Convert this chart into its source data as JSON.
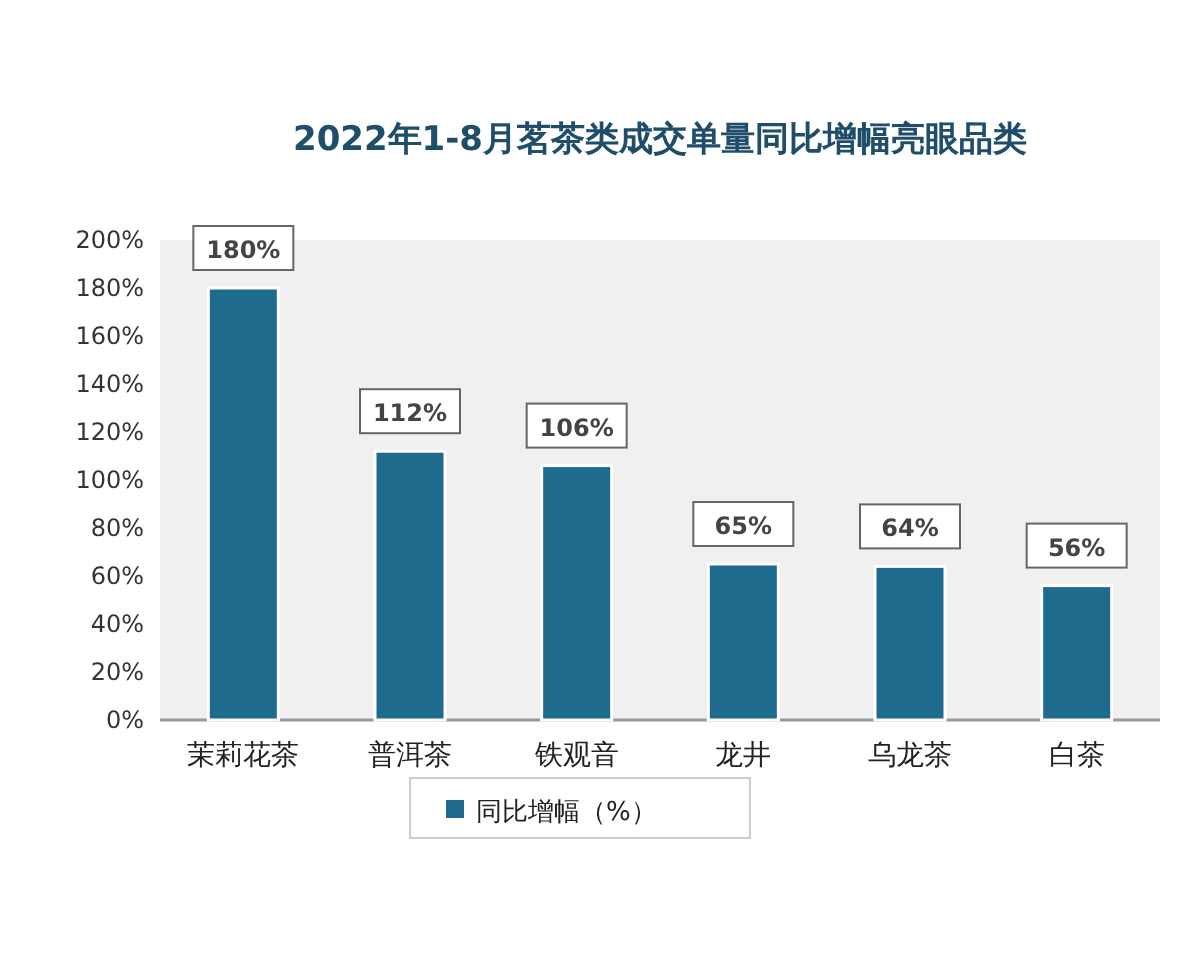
{
  "chart_data": {
    "type": "bar",
    "title": "2022年1-8月茗茶类成交单量同比增幅亮眼品类",
    "categories": [
      "茉莉花茶",
      "普洱茶",
      "铁观音",
      "龙井",
      "乌龙茶",
      "白茶"
    ],
    "series": [
      {
        "name": "同比增幅（%）",
        "color": "#1f6b8e",
        "values": [
          180,
          112,
          106,
          65,
          64,
          56
        ],
        "value_labels": [
          "180%",
          "112%",
          "106%",
          "65%",
          "64%",
          "56%"
        ]
      }
    ],
    "ylim": [
      0,
      200
    ],
    "yticks": [
      {
        "value": 0,
        "label": "0%"
      },
      {
        "value": 20,
        "label": "20%"
      },
      {
        "value": 40,
        "label": "40%"
      },
      {
        "value": 60,
        "label": "60%"
      },
      {
        "value": 80,
        "label": "80%"
      },
      {
        "value": 100,
        "label": "100%"
      },
      {
        "value": 120,
        "label": "120%"
      },
      {
        "value": 140,
        "label": "140%"
      },
      {
        "value": 160,
        "label": "160%"
      },
      {
        "value": 180,
        "label": "180%"
      },
      {
        "value": 200,
        "label": "200%"
      }
    ],
    "grid": false,
    "legend": "bottom"
  }
}
